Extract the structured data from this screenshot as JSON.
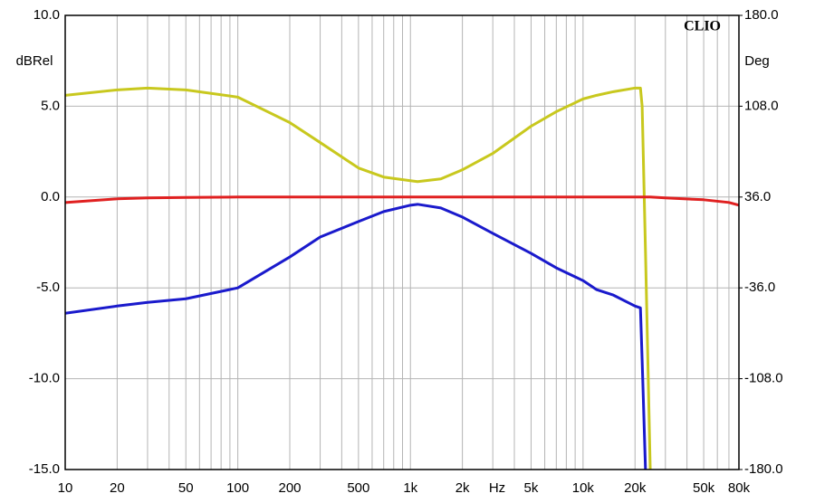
{
  "chart_data": {
    "type": "line",
    "annotation": "CLIO",
    "ylabel": "dBRel",
    "y2label": "Deg",
    "xlabel": "Hz",
    "xscale": "log",
    "grid": true,
    "xlim": [
      10,
      80000
    ],
    "ylim": [
      -15,
      10
    ],
    "y2lim": [
      -180,
      180
    ],
    "xticks": [
      10,
      20,
      50,
      100,
      200,
      500,
      {
        "value": 1000,
        "label": "1k"
      },
      {
        "value": 2000,
        "label": "2k"
      },
      {
        "value": 5000,
        "label": "5k"
      },
      {
        "value": 10000,
        "label": "10k"
      },
      {
        "value": 20000,
        "label": "20k"
      },
      {
        "value": 50000,
        "label": "50k"
      },
      {
        "value": 80000,
        "label": "80k"
      }
    ],
    "yticks": [
      {
        "value": 10,
        "label": "10.0"
      },
      {
        "value": 5,
        "label": "5.0"
      },
      {
        "value": 0,
        "label": "0.0"
      },
      {
        "value": -5,
        "label": "-5.0"
      },
      {
        "value": -10,
        "label": "-10.0"
      },
      {
        "value": -15,
        "label": "-15.0"
      }
    ],
    "y2ticks": [
      {
        "value": 180,
        "label": "180.0"
      },
      {
        "value": 108,
        "label": "108.0"
      },
      {
        "value": 36,
        "label": "36.0"
      },
      {
        "value": -36,
        "label": "-36.0"
      },
      {
        "value": -108,
        "label": "-108.0"
      },
      {
        "value": -180,
        "label": "-180.0"
      }
    ],
    "x": [
      10,
      20,
      30,
      50,
      100,
      200,
      300,
      500,
      700,
      1000,
      1100,
      1500,
      2000,
      3000,
      5000,
      7000,
      10000,
      12000,
      15000,
      20000,
      21500,
      22000,
      23000,
      24500,
      30000,
      50000,
      70000,
      80000
    ],
    "series": [
      {
        "color": "#c8c81e",
        "values": [
          5.6,
          5.9,
          6.0,
          5.9,
          5.5,
          4.1,
          3.0,
          1.6,
          1.1,
          0.9,
          0.85,
          1.0,
          1.5,
          2.4,
          3.9,
          4.7,
          5.4,
          5.6,
          5.8,
          6.0,
          6.0,
          5.0,
          -3,
          -15,
          null,
          null,
          null,
          null
        ]
      },
      {
        "color": "#e02020",
        "values": [
          -0.3,
          -0.1,
          -0.05,
          -0.02,
          0,
          0,
          0,
          0,
          0,
          0,
          0,
          0,
          0,
          0,
          0,
          0,
          0,
          0,
          0,
          0,
          0,
          0,
          0,
          0,
          -0.05,
          -0.15,
          -0.3,
          -0.45
        ]
      },
      {
        "color": "#1a1acc",
        "values": [
          -6.4,
          -6.0,
          -5.8,
          -5.6,
          -5.0,
          -3.3,
          -2.2,
          -1.35,
          -0.8,
          -0.45,
          -0.4,
          -0.6,
          -1.1,
          -2.0,
          -3.1,
          -3.9,
          -4.6,
          -5.1,
          -5.4,
          -6.0,
          -6.1,
          -9,
          -15,
          null,
          null,
          null,
          null,
          null
        ]
      }
    ]
  }
}
